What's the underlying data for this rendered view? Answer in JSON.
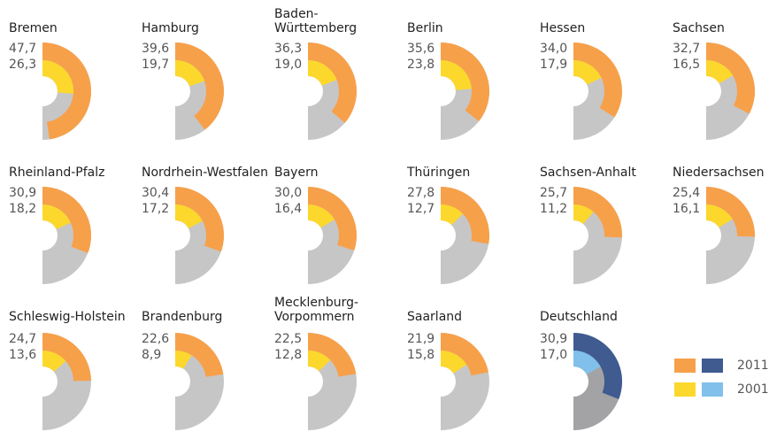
{
  "chart_data": {
    "type": "half-donut",
    "categories": [
      "Bremen",
      "Hamburg",
      "Baden-\nWürttemberg",
      "Berlin",
      "Hessen",
      "Sachsen",
      "Rheinland-Pfalz",
      "Nordrhein-Westfalen",
      "Bayern",
      "Thüringen",
      "Sachsen-Anhalt",
      "Niedersachsen",
      "Schleswig-Holstein",
      "Brandenburg",
      "Mecklenburg-\nVorpommern",
      "Saarland",
      "Deutschland"
    ],
    "highlight": "Deutschland",
    "remainder_color": "#c6c6c6",
    "highlight_remainder_color": "#a3a3a6",
    "series": [
      {
        "name": "2011",
        "color": "#f7a04a",
        "highlight_color": "#3f5b8f",
        "values": [
          47.7,
          39.6,
          36.3,
          35.6,
          34.0,
          32.7,
          30.9,
          30.4,
          30.0,
          27.8,
          25.7,
          25.4,
          24.7,
          22.6,
          22.5,
          21.9,
          30.9
        ],
        "value_labels": [
          "47,7",
          "39,6",
          "36,3",
          "35,6",
          "34,0",
          "32,7",
          "30,9",
          "30,4",
          "30,0",
          "27,8",
          "25,7",
          "25,4",
          "24,7",
          "22,6",
          "22,5",
          "21,9",
          "30,9"
        ]
      },
      {
        "name": "2001",
        "color": "#fcd82c",
        "highlight_color": "#80c0ea",
        "values": [
          26.3,
          19.7,
          19.0,
          23.8,
          17.9,
          16.5,
          18.2,
          17.2,
          16.4,
          12.7,
          11.2,
          16.1,
          13.6,
          8.9,
          12.8,
          15.8,
          17.0
        ],
        "value_labels": [
          "26,3",
          "19,7",
          "19,0",
          "23,8",
          "17,9",
          "16,5",
          "18,2",
          "17,2",
          "16,4",
          "12,7",
          "11,2",
          "16,1",
          "13,6",
          "8,9",
          "12,8",
          "15,8",
          "17,0"
        ]
      }
    ]
  }
}
